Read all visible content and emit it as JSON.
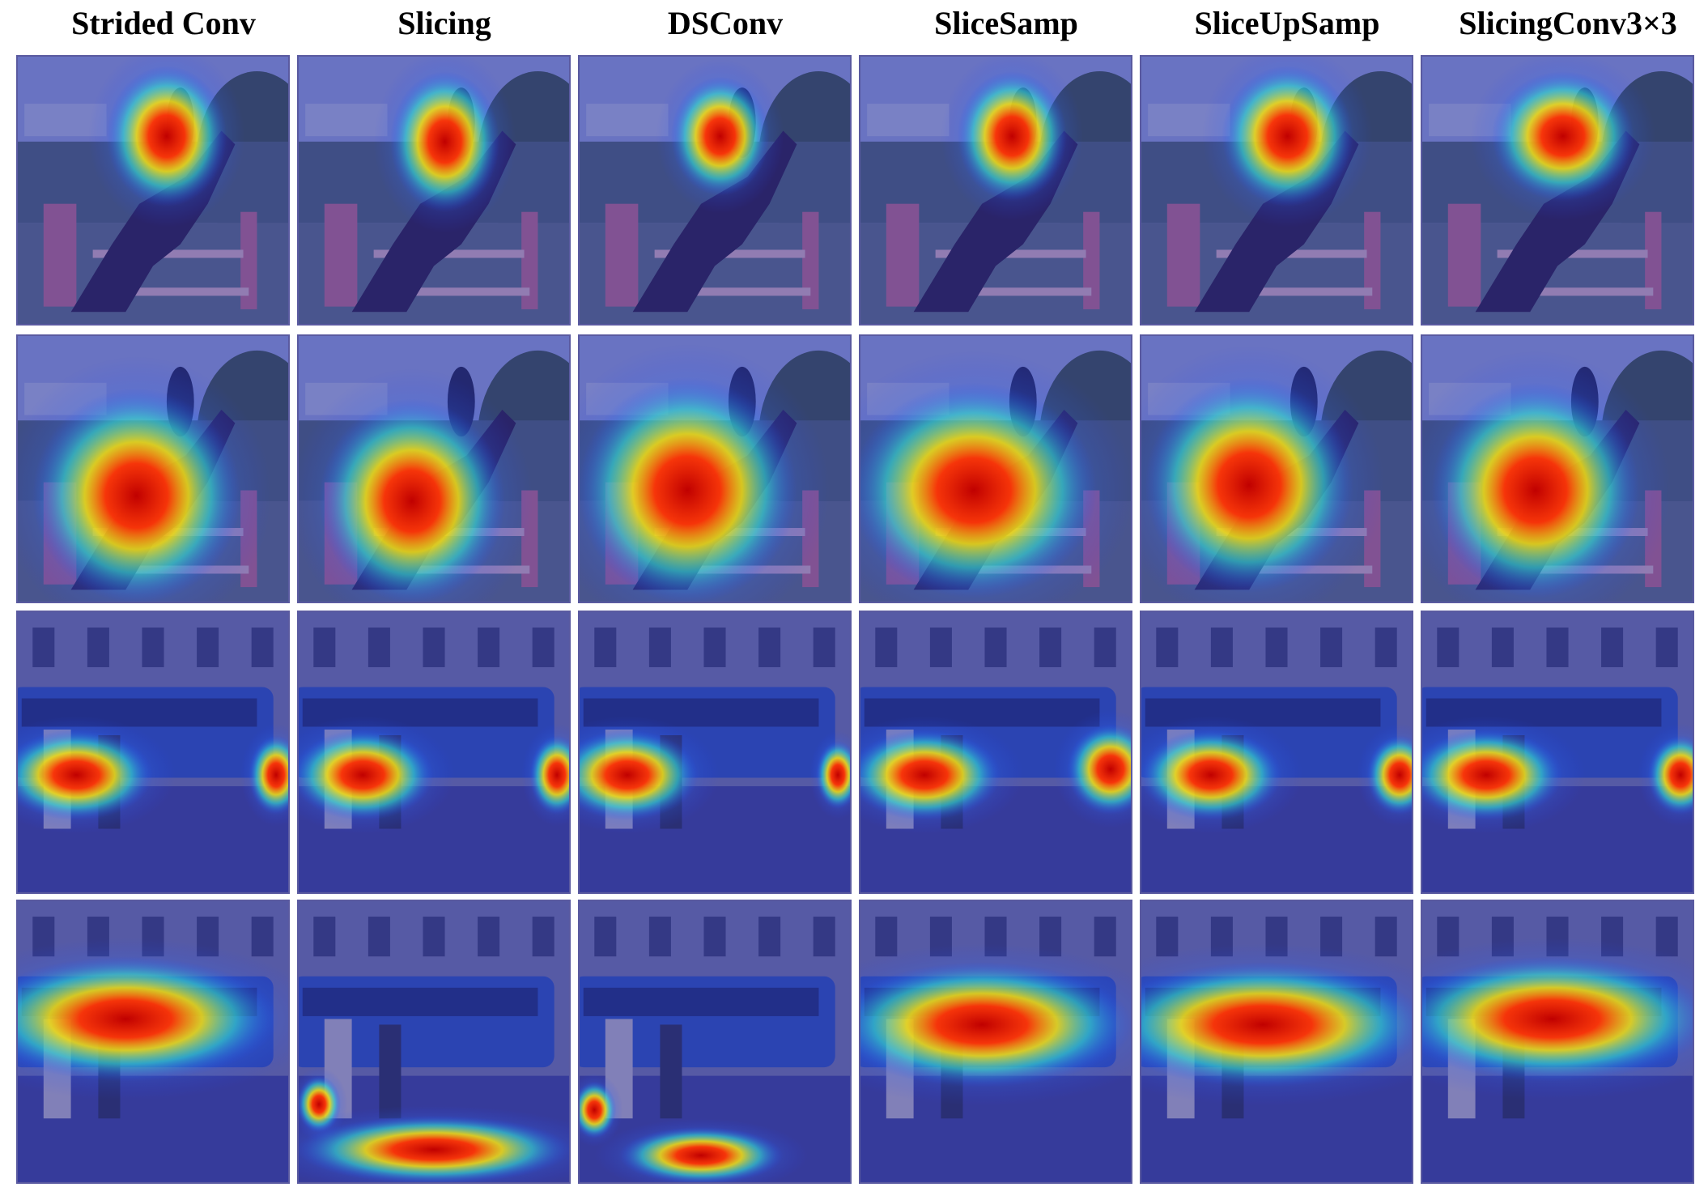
{
  "columns": [
    "Strided Conv",
    "Slicing",
    "DSConv",
    "SliceSamp",
    "SliceUpSamp",
    "SlicingConv3×3"
  ]
}
